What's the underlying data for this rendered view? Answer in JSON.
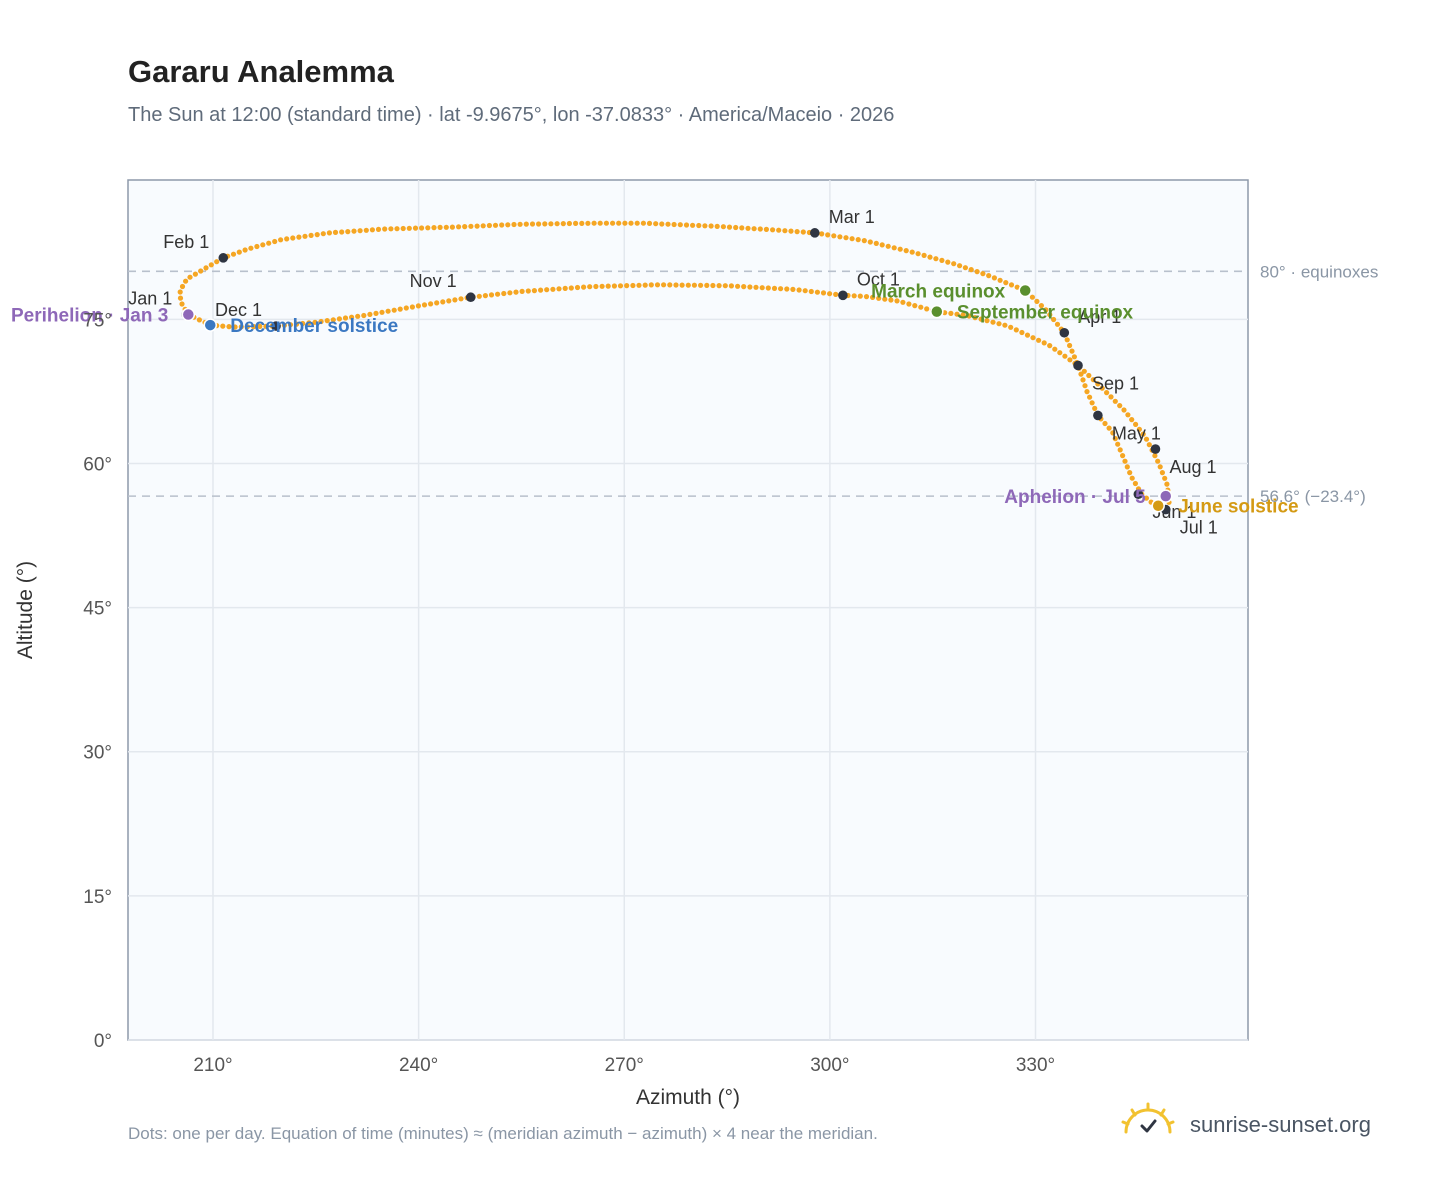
{
  "header": {
    "title": "Gararu Analemma",
    "subtitle": "The Sun at 12:00 (standard time) · lat -9.9675°, lon -37.0833° · America/Maceio · 2026"
  },
  "footer": {
    "note": "Dots: one per day. Equation of time (minutes) ≈ (meridian azimuth − azimuth) × 4 near the meridian.",
    "brand": "sunrise-sunset.org"
  },
  "colors": {
    "curve": "#f5a623",
    "month_marker": "#2f3542",
    "equinox": "#5a8f2e",
    "june_solstice": "#d49a14",
    "december_solstice": "#3b78c2",
    "apsis": "#8e68b8",
    "grid": "#e3e8ee",
    "plot_bg": "#f8fbfe",
    "reference_line": "#b8c0cc",
    "brand_sun": "#f2c230"
  },
  "chart_data": {
    "type": "scatter",
    "xlabel": "Azimuth (°)",
    "ylabel": "Altitude (°)",
    "xlim": [
      197.6,
      361
    ],
    "ylim": [
      0,
      89.5
    ],
    "x_ticks": [
      210,
      240,
      270,
      300,
      330
    ],
    "x_tick_labels": [
      "210°",
      "240°",
      "270°",
      "300°",
      "330°"
    ],
    "y_ticks": [
      0,
      15,
      30,
      45,
      60,
      75
    ],
    "y_tick_labels": [
      "0°",
      "15°",
      "30°",
      "45°",
      "60°",
      "75°"
    ],
    "grid": true,
    "reference_lines": [
      {
        "y": 80,
        "label": "80° · equinoxes"
      },
      {
        "y": 56.6,
        "label": "56.6° (−23.4°)"
      }
    ],
    "analemma_path": [
      [
        206.4,
        75.5
      ],
      [
        205.3,
        76.8
      ],
      [
        205.2,
        78.0
      ],
      [
        206.2,
        79.2
      ],
      [
        208.6,
        80.2
      ],
      [
        211.5,
        81.4
      ],
      [
        215.0,
        82.3
      ],
      [
        220.0,
        83.3
      ],
      [
        227.0,
        84.0
      ],
      [
        235.0,
        84.4
      ],
      [
        245.0,
        84.6
      ],
      [
        255.0,
        84.9
      ],
      [
        265.0,
        85.0
      ],
      [
        273.0,
        85.0
      ],
      [
        283.0,
        84.7
      ],
      [
        292.0,
        84.3
      ],
      [
        297.8,
        84.0
      ],
      [
        305.0,
        83.2
      ],
      [
        312.0,
        82.0
      ],
      [
        318.0,
        80.8
      ],
      [
        323.0,
        79.6
      ],
      [
        328.5,
        78.0
      ],
      [
        331.5,
        76.0
      ],
      [
        334.2,
        73.6
      ],
      [
        336.2,
        70.2
      ],
      [
        337.5,
        67.5
      ],
      [
        339.1,
        65.0
      ],
      [
        341.2,
        63.3
      ],
      [
        342.6,
        61.0
      ],
      [
        344.0,
        58.6
      ],
      [
        345.5,
        56.8
      ],
      [
        347.5,
        55.6
      ],
      [
        349.0,
        55.2
      ],
      [
        349.5,
        56.0
      ],
      [
        349.2,
        57.8
      ],
      [
        348.0,
        60.0
      ],
      [
        346.0,
        62.8
      ],
      [
        343.0,
        65.5
      ],
      [
        339.5,
        68.0
      ],
      [
        336.2,
        70.2
      ],
      [
        332.0,
        72.3
      ],
      [
        326.0,
        74.3
      ],
      [
        320.0,
        75.4
      ],
      [
        315.6,
        75.8
      ],
      [
        310.0,
        76.9
      ],
      [
        305.0,
        77.4
      ],
      [
        301.9,
        77.5
      ],
      [
        295.0,
        78.1
      ],
      [
        285.0,
        78.5
      ],
      [
        275.0,
        78.6
      ],
      [
        265.0,
        78.4
      ],
      [
        255.0,
        77.9
      ],
      [
        247.6,
        77.3
      ],
      [
        240.0,
        76.4
      ],
      [
        232.0,
        75.4
      ],
      [
        225.0,
        74.7
      ],
      [
        219.2,
        74.3
      ],
      [
        213.0,
        74.2
      ],
      [
        209.6,
        74.4
      ],
      [
        206.4,
        75.5
      ]
    ],
    "month_markers": [
      {
        "label": "Jan 1",
        "x": 206.1,
        "y": 75.5,
        "pos": "above-left"
      },
      {
        "label": "Feb 1",
        "x": 211.5,
        "y": 81.4,
        "pos": "above-left"
      },
      {
        "label": "Mar 1",
        "x": 297.8,
        "y": 84.0,
        "pos": "above-right"
      },
      {
        "label": "Apr 1",
        "x": 334.2,
        "y": 73.6,
        "pos": "above-right"
      },
      {
        "label": "May 1",
        "x": 339.1,
        "y": 65.0,
        "pos": "below-right"
      },
      {
        "label": "Jun 1",
        "x": 345.0,
        "y": 56.8,
        "pos": "below-right"
      },
      {
        "label": "Jul 1",
        "x": 349.0,
        "y": 55.2,
        "pos": "below-right"
      },
      {
        "label": "Aug 1",
        "x": 347.5,
        "y": 61.5,
        "pos": "below-right"
      },
      {
        "label": "Sep 1",
        "x": 336.2,
        "y": 70.2,
        "pos": "below-right"
      },
      {
        "label": "Oct 1",
        "x": 301.9,
        "y": 77.5,
        "pos": "above-right"
      },
      {
        "label": "Nov 1",
        "x": 247.6,
        "y": 77.3,
        "pos": "above-left"
      },
      {
        "label": "Dec 1",
        "x": 219.2,
        "y": 74.3,
        "pos": "above-left"
      }
    ],
    "events": [
      {
        "label": "March equinox",
        "x": 328.5,
        "y": 78.0,
        "kind": "equinox",
        "anchor": "end"
      },
      {
        "label": "September equinox",
        "x": 315.6,
        "y": 75.8,
        "kind": "equinox",
        "anchor": "start"
      },
      {
        "label": "June solstice",
        "x": 347.9,
        "y": 55.6,
        "kind": "june_solstice",
        "anchor": "start"
      },
      {
        "label": "December solstice",
        "x": 209.6,
        "y": 74.4,
        "kind": "december_solstice",
        "anchor": "start"
      },
      {
        "label": "Perihelion · Jan 3",
        "x": 206.4,
        "y": 75.5,
        "kind": "apsis",
        "anchor": "end"
      },
      {
        "label": "Aphelion · Jul 5",
        "x": 349.0,
        "y": 56.6,
        "kind": "apsis",
        "anchor": "end"
      }
    ]
  }
}
